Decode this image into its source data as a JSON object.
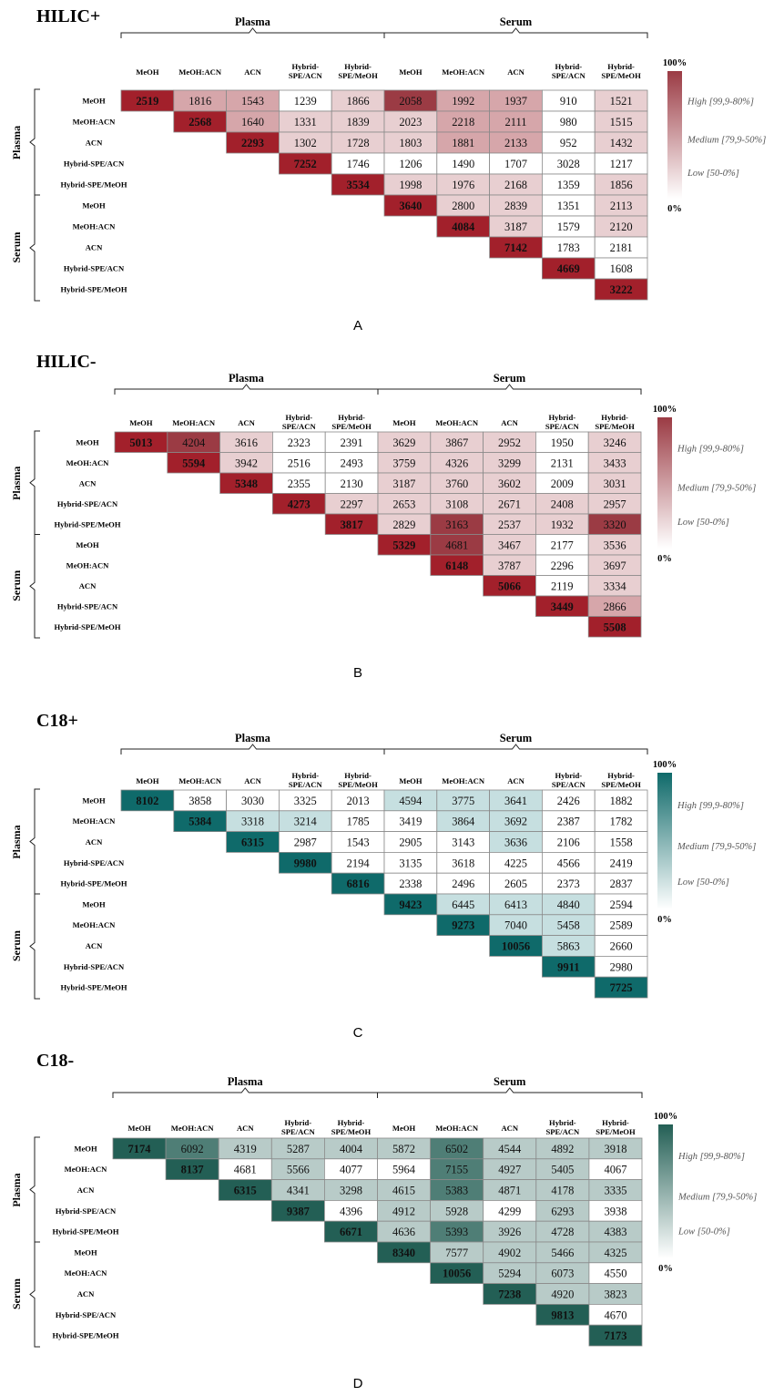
{
  "column_labels": [
    "MeOH",
    "MeOH:ACN",
    "ACN",
    "Hybrid-\nSPE/ACN",
    "Hybrid-\nSPE/MeOH",
    "MeOH",
    "MeOH:ACN",
    "ACN",
    "Hybrid-\nSPE/ACN",
    "Hybrid-\nSPE/MeOH"
  ],
  "row_labels": [
    "MeOH",
    "MeOH:ACN",
    "ACN",
    "Hybrid-SPE/ACN",
    "Hybrid-SPE/MeOH",
    "MeOH",
    "MeOH:ACN",
    "ACN",
    "Hybrid-SPE/ACN",
    "Hybrid-SPE/MeOH"
  ],
  "group_labels": [
    "Plasma",
    "Serum"
  ],
  "legend": {
    "top": "100%",
    "bottom": "0%",
    "high": "High [99,9-80%]",
    "medium": "Medium [79,9-50%]",
    "low": "Low [50-0%]"
  },
  "colors": {
    "red_high": "#9b3b44",
    "red_med": "#d6a6aa",
    "red_low": "#e8cfd1",
    "diag_red": "#a2202b",
    "teal_high": "#0f6a6a",
    "teal_light": "#c6dfe0",
    "green_high": "#235f55",
    "green_med": "#4f7e76",
    "green_light": "#b8cbc8"
  },
  "chart_data": [
    {
      "type": "heatmap",
      "title": "HILIC+",
      "panel_label": "A",
      "colormap": "red",
      "cells": [
        [
          [
            "2519",
            "d"
          ],
          [
            "1816",
            "m"
          ],
          [
            "1543",
            "m"
          ],
          [
            "1239",
            "n"
          ],
          [
            "1866",
            "l"
          ],
          [
            "2058",
            "h"
          ],
          [
            "1992",
            "m"
          ],
          [
            "1937",
            "m"
          ],
          [
            "910",
            "n"
          ],
          [
            "1521",
            "l"
          ]
        ],
        [
          null,
          [
            "2568",
            "d"
          ],
          [
            "1640",
            "m"
          ],
          [
            "1331",
            "l"
          ],
          [
            "1839",
            "l"
          ],
          [
            "2023",
            "l"
          ],
          [
            "2218",
            "m"
          ],
          [
            "2111",
            "m"
          ],
          [
            "980",
            "n"
          ],
          [
            "1515",
            "l"
          ]
        ],
        [
          null,
          null,
          [
            "2293",
            "d"
          ],
          [
            "1302",
            "l"
          ],
          [
            "1728",
            "l"
          ],
          [
            "1803",
            "l"
          ],
          [
            "1881",
            "m"
          ],
          [
            "2133",
            "m"
          ],
          [
            "952",
            "n"
          ],
          [
            "1432",
            "l"
          ]
        ],
        [
          null,
          null,
          null,
          [
            "7252",
            "d"
          ],
          [
            "1746",
            "n"
          ],
          [
            "1206",
            "n"
          ],
          [
            "1490",
            "n"
          ],
          [
            "1707",
            "n"
          ],
          [
            "3028",
            "n"
          ],
          [
            "1217",
            "n"
          ]
        ],
        [
          null,
          null,
          null,
          null,
          [
            "3534",
            "d"
          ],
          [
            "1998",
            "l"
          ],
          [
            "1976",
            "l"
          ],
          [
            "2168",
            "l"
          ],
          [
            "1359",
            "n"
          ],
          [
            "1856",
            "l"
          ]
        ],
        [
          null,
          null,
          null,
          null,
          null,
          [
            "3640",
            "d"
          ],
          [
            "2800",
            "l"
          ],
          [
            "2839",
            "l"
          ],
          [
            "1351",
            "n"
          ],
          [
            "2113",
            "l"
          ]
        ],
        [
          null,
          null,
          null,
          null,
          null,
          null,
          [
            "4084",
            "d"
          ],
          [
            "3187",
            "l"
          ],
          [
            "1579",
            "n"
          ],
          [
            "2120",
            "l"
          ]
        ],
        [
          null,
          null,
          null,
          null,
          null,
          null,
          null,
          [
            "7142",
            "d"
          ],
          [
            "1783",
            "n"
          ],
          [
            "2181",
            "n"
          ]
        ],
        [
          null,
          null,
          null,
          null,
          null,
          null,
          null,
          null,
          [
            "4669",
            "d"
          ],
          [
            "1608",
            "n"
          ]
        ],
        [
          null,
          null,
          null,
          null,
          null,
          null,
          null,
          null,
          null,
          [
            "3222",
            "d"
          ]
        ]
      ]
    },
    {
      "type": "heatmap",
      "title": "HILIC-",
      "panel_label": "B",
      "colormap": "red",
      "cells": [
        [
          [
            "5013",
            "d"
          ],
          [
            "4204",
            "h"
          ],
          [
            "3616",
            "l"
          ],
          [
            "2323",
            "n"
          ],
          [
            "2391",
            "n"
          ],
          [
            "3629",
            "l"
          ],
          [
            "3867",
            "l"
          ],
          [
            "2952",
            "l"
          ],
          [
            "1950",
            "n"
          ],
          [
            "3246",
            "l"
          ]
        ],
        [
          null,
          [
            "5594",
            "d"
          ],
          [
            "3942",
            "l"
          ],
          [
            "2516",
            "n"
          ],
          [
            "2493",
            "n"
          ],
          [
            "3759",
            "l"
          ],
          [
            "4326",
            "l"
          ],
          [
            "3299",
            "l"
          ],
          [
            "2131",
            "n"
          ],
          [
            "3433",
            "l"
          ]
        ],
        [
          null,
          null,
          [
            "5348",
            "d"
          ],
          [
            "2355",
            "n"
          ],
          [
            "2130",
            "n"
          ],
          [
            "3187",
            "l"
          ],
          [
            "3760",
            "l"
          ],
          [
            "3602",
            "l"
          ],
          [
            "2009",
            "n"
          ],
          [
            "3031",
            "l"
          ]
        ],
        [
          null,
          null,
          null,
          [
            "4273",
            "d"
          ],
          [
            "2297",
            "l"
          ],
          [
            "2653",
            "l"
          ],
          [
            "3108",
            "l"
          ],
          [
            "2671",
            "l"
          ],
          [
            "2408",
            "l"
          ],
          [
            "2957",
            "l"
          ]
        ],
        [
          null,
          null,
          null,
          null,
          [
            "3817",
            "d"
          ],
          [
            "2829",
            "l"
          ],
          [
            "3163",
            "h"
          ],
          [
            "2537",
            "l"
          ],
          [
            "1932",
            "l"
          ],
          [
            "3320",
            "h"
          ]
        ],
        [
          null,
          null,
          null,
          null,
          null,
          [
            "5329",
            "d"
          ],
          [
            "4681",
            "h"
          ],
          [
            "3467",
            "l"
          ],
          [
            "2177",
            "n"
          ],
          [
            "3536",
            "l"
          ]
        ],
        [
          null,
          null,
          null,
          null,
          null,
          null,
          [
            "6148",
            "d"
          ],
          [
            "3787",
            "l"
          ],
          [
            "2296",
            "n"
          ],
          [
            "3697",
            "l"
          ]
        ],
        [
          null,
          null,
          null,
          null,
          null,
          null,
          null,
          [
            "5066",
            "d"
          ],
          [
            "2119",
            "n"
          ],
          [
            "3334",
            "l"
          ]
        ],
        [
          null,
          null,
          null,
          null,
          null,
          null,
          null,
          null,
          [
            "3449",
            "d"
          ],
          [
            "2866",
            "m"
          ]
        ],
        [
          null,
          null,
          null,
          null,
          null,
          null,
          null,
          null,
          null,
          [
            "5508",
            "d"
          ]
        ]
      ]
    },
    {
      "type": "heatmap",
      "title": "C18+",
      "panel_label": "C",
      "colormap": "teal",
      "cells": [
        [
          [
            "8102",
            "d"
          ],
          [
            "3858",
            "n"
          ],
          [
            "3030",
            "n"
          ],
          [
            "3325",
            "n"
          ],
          [
            "2013",
            "n"
          ],
          [
            "4594",
            "l"
          ],
          [
            "3775",
            "l"
          ],
          [
            "3641",
            "l"
          ],
          [
            "2426",
            "n"
          ],
          [
            "1882",
            "n"
          ]
        ],
        [
          null,
          [
            "5384",
            "d"
          ],
          [
            "3318",
            "l"
          ],
          [
            "3214",
            "l"
          ],
          [
            "1785",
            "n"
          ],
          [
            "3419",
            "n"
          ],
          [
            "3864",
            "l"
          ],
          [
            "3692",
            "l"
          ],
          [
            "2387",
            "n"
          ],
          [
            "1782",
            "n"
          ]
        ],
        [
          null,
          null,
          [
            "6315",
            "d"
          ],
          [
            "2987",
            "n"
          ],
          [
            "1543",
            "n"
          ],
          [
            "2905",
            "n"
          ],
          [
            "3143",
            "n"
          ],
          [
            "3636",
            "l"
          ],
          [
            "2106",
            "n"
          ],
          [
            "1558",
            "n"
          ]
        ],
        [
          null,
          null,
          null,
          [
            "9980",
            "d"
          ],
          [
            "2194",
            "n"
          ],
          [
            "3135",
            "n"
          ],
          [
            "3618",
            "n"
          ],
          [
            "4225",
            "n"
          ],
          [
            "4566",
            "n"
          ],
          [
            "2419",
            "n"
          ]
        ],
        [
          null,
          null,
          null,
          null,
          [
            "6816",
            "d"
          ],
          [
            "2338",
            "n"
          ],
          [
            "2496",
            "n"
          ],
          [
            "2605",
            "n"
          ],
          [
            "2373",
            "n"
          ],
          [
            "2837",
            "n"
          ]
        ],
        [
          null,
          null,
          null,
          null,
          null,
          [
            "9423",
            "d"
          ],
          [
            "6445",
            "l"
          ],
          [
            "6413",
            "l"
          ],
          [
            "4840",
            "l"
          ],
          [
            "2594",
            "n"
          ]
        ],
        [
          null,
          null,
          null,
          null,
          null,
          null,
          [
            "9273",
            "d"
          ],
          [
            "7040",
            "l"
          ],
          [
            "5458",
            "l"
          ],
          [
            "2589",
            "n"
          ]
        ],
        [
          null,
          null,
          null,
          null,
          null,
          null,
          null,
          [
            "10056",
            "d"
          ],
          [
            "5863",
            "l"
          ],
          [
            "2660",
            "n"
          ]
        ],
        [
          null,
          null,
          null,
          null,
          null,
          null,
          null,
          null,
          [
            "9911",
            "d"
          ],
          [
            "2980",
            "n"
          ]
        ],
        [
          null,
          null,
          null,
          null,
          null,
          null,
          null,
          null,
          null,
          [
            "7725",
            "d"
          ]
        ]
      ]
    },
    {
      "type": "heatmap",
      "title": "C18-",
      "panel_label": "D",
      "colormap": "green",
      "cells": [
        [
          [
            "7174",
            "d"
          ],
          [
            "6092",
            "m"
          ],
          [
            "4319",
            "l"
          ],
          [
            "5287",
            "l"
          ],
          [
            "4004",
            "l"
          ],
          [
            "5872",
            "l"
          ],
          [
            "6502",
            "m"
          ],
          [
            "4544",
            "l"
          ],
          [
            "4892",
            "l"
          ],
          [
            "3918",
            "l"
          ]
        ],
        [
          null,
          [
            "8137",
            "d"
          ],
          [
            "4681",
            "n"
          ],
          [
            "5566",
            "l"
          ],
          [
            "4077",
            "n"
          ],
          [
            "5964",
            "n"
          ],
          [
            "7155",
            "m"
          ],
          [
            "4927",
            "l"
          ],
          [
            "5405",
            "l"
          ],
          [
            "4067",
            "n"
          ]
        ],
        [
          null,
          null,
          [
            "6315",
            "d"
          ],
          [
            "4341",
            "l"
          ],
          [
            "3298",
            "l"
          ],
          [
            "4615",
            "l"
          ],
          [
            "5383",
            "m"
          ],
          [
            "4871",
            "l"
          ],
          [
            "4178",
            "l"
          ],
          [
            "3335",
            "l"
          ]
        ],
        [
          null,
          null,
          null,
          [
            "9387",
            "d"
          ],
          [
            "4396",
            "n"
          ],
          [
            "4912",
            "l"
          ],
          [
            "5928",
            "l"
          ],
          [
            "4299",
            "n"
          ],
          [
            "6293",
            "l"
          ],
          [
            "3938",
            "n"
          ]
        ],
        [
          null,
          null,
          null,
          null,
          [
            "6671",
            "d"
          ],
          [
            "4636",
            "l"
          ],
          [
            "5393",
            "m"
          ],
          [
            "3926",
            "l"
          ],
          [
            "4728",
            "l"
          ],
          [
            "4383",
            "l"
          ]
        ],
        [
          null,
          null,
          null,
          null,
          null,
          [
            "8340",
            "d"
          ],
          [
            "7577",
            "l"
          ],
          [
            "4902",
            "l"
          ],
          [
            "5466",
            "l"
          ],
          [
            "4325",
            "l"
          ]
        ],
        [
          null,
          null,
          null,
          null,
          null,
          null,
          [
            "10056",
            "d"
          ],
          [
            "5294",
            "l"
          ],
          [
            "6073",
            "l"
          ],
          [
            "4550",
            "n"
          ]
        ],
        [
          null,
          null,
          null,
          null,
          null,
          null,
          null,
          [
            "7238",
            "d"
          ],
          [
            "4920",
            "l"
          ],
          [
            "3823",
            "l"
          ]
        ],
        [
          null,
          null,
          null,
          null,
          null,
          null,
          null,
          null,
          [
            "9813",
            "d"
          ],
          [
            "4670",
            "n"
          ]
        ],
        [
          null,
          null,
          null,
          null,
          null,
          null,
          null,
          null,
          null,
          [
            "7173",
            "d"
          ]
        ]
      ]
    }
  ]
}
